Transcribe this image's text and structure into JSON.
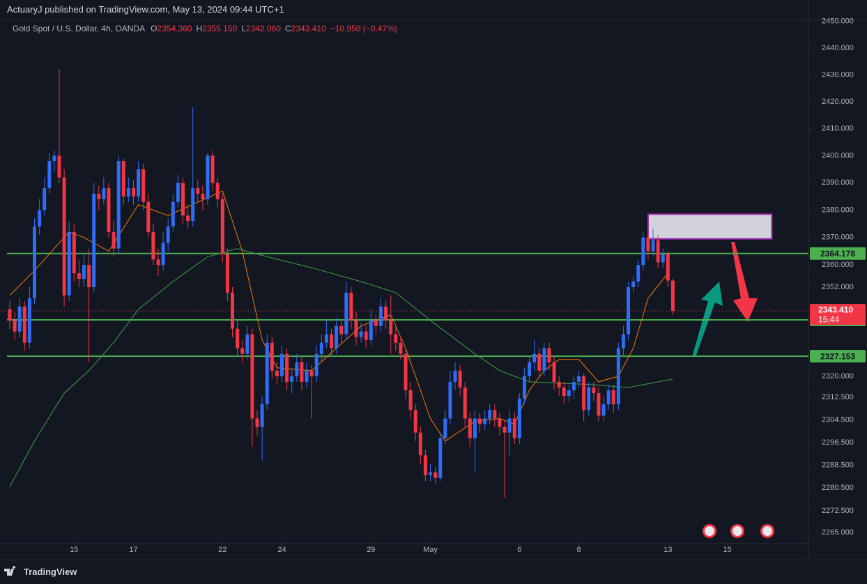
{
  "header": {
    "published": "ActuaryJ published on TradingView.com, May 13, 2024 09:44 UTC+1"
  },
  "legend": {
    "symbol": "Gold Spot / U.S. Dollar, 4h, OANDA",
    "items": [
      {
        "key": "O",
        "value": "2354.360"
      },
      {
        "key": "H",
        "value": "2355.150"
      },
      {
        "key": "L",
        "value": "2342.060"
      },
      {
        "key": "C",
        "value": "2343.410"
      }
    ],
    "change": "−10.950 (−0.47%)"
  },
  "footer": {
    "brand": "TradingView"
  },
  "chart_data": {
    "type": "candlestick",
    "log_scale": true,
    "grid": false,
    "up_color": "#2f6df6",
    "down_color": "#f23645",
    "xlim": [
      -1.97,
      161.4
    ],
    "ylim": [
      2261.1,
      2458.1
    ],
    "xticks": [
      {
        "value": 13,
        "label": "15"
      },
      {
        "value": 25,
        "label": "17"
      },
      {
        "value": 43,
        "label": "22"
      },
      {
        "value": 55,
        "label": "24"
      },
      {
        "value": 73,
        "label": "29"
      },
      {
        "value": 85,
        "label": "May"
      },
      {
        "value": 103,
        "label": "6"
      },
      {
        "value": 115,
        "label": "8"
      },
      {
        "value": 133,
        "label": "13"
      },
      {
        "value": 145,
        "label": "15"
      }
    ],
    "yticks": [
      {
        "value": 2450,
        "label": "2450.000"
      },
      {
        "value": 2440,
        "label": "2440.000"
      },
      {
        "value": 2430,
        "label": "2430.000"
      },
      {
        "value": 2420,
        "label": "2420.000"
      },
      {
        "value": 2410,
        "label": "2410.000"
      },
      {
        "value": 2400,
        "label": "2400.000"
      },
      {
        "value": 2390,
        "label": "2390.000"
      },
      {
        "value": 2380,
        "label": "2380.000"
      },
      {
        "value": 2370,
        "label": "2370.000"
      },
      {
        "value": 2360,
        "label": "2360.000"
      },
      {
        "value": 2352,
        "label": "2352.000"
      },
      {
        "value": 2320,
        "label": "2320.000"
      },
      {
        "value": 2312.5,
        "label": "2312.500"
      },
      {
        "value": 2304.5,
        "label": "2304.500"
      },
      {
        "value": 2296.5,
        "label": "2296.500"
      },
      {
        "value": 2288.5,
        "label": "2288.500"
      },
      {
        "value": 2280.5,
        "label": "2280.500"
      },
      {
        "value": 2272.5,
        "label": "2272.500"
      },
      {
        "value": 2265,
        "label": "2265.000"
      }
    ],
    "open": [
      2344,
      2340,
      2336,
      2345,
      2332,
      2348,
      2374,
      2380,
      2388,
      2398,
      2400,
      2392,
      2349,
      2372,
      2357,
      2355,
      2360,
      2352,
      2386,
      2384,
      2388,
      2372,
      2366,
      2398,
      2385,
      2388,
      2385,
      2395,
      2383,
      2372,
      2362,
      2360,
      2368,
      2374,
      2383,
      2390,
      2378,
      2376,
      2388,
      2386,
      2384,
      2400,
      2390,
      2384,
      2364,
      2350,
      2337,
      2330,
      2328,
      2335,
      2305,
      2302,
      2310,
      2332,
      2322,
      2320,
      2328,
      2318,
      2320,
      2325,
      2318,
      2322,
      2320,
      2328,
      2332,
      2335,
      2330,
      2338,
      2335,
      2350,
      2340,
      2334,
      2336,
      2333,
      2340,
      2338,
      2345,
      2340,
      2335,
      2332,
      2328,
      2315,
      2308,
      2300,
      2292,
      2285,
      2286,
      2284,
      2298,
      2305,
      2318,
      2322,
      2316,
      2305,
      2298,
      2305,
      2303,
      2305,
      2308,
      2305,
      2302,
      2300,
      2305,
      2298,
      2312,
      2320,
      2325,
      2328,
      2322,
      2330,
      2325,
      2318,
      2316,
      2313,
      2315,
      2318,
      2320,
      2308,
      2316,
      2314,
      2306,
      2310,
      2315,
      2310,
      2330,
      2335,
      2352,
      2354,
      2360,
      2370,
      2365,
      2369,
      2361,
      2364,
      2354.36
    ],
    "high": [
      2347,
      2343,
      2348,
      2347,
      2352,
      2377,
      2384,
      2392,
      2401,
      2402,
      2432,
      2395,
      2376,
      2375,
      2362,
      2364,
      2366,
      2390,
      2389,
      2392,
      2390,
      2376,
      2400,
      2399,
      2392,
      2391,
      2398,
      2397,
      2386,
      2375,
      2366,
      2372,
      2377,
      2386,
      2393,
      2392,
      2382,
      2418,
      2391,
      2389,
      2401,
      2402,
      2392,
      2386,
      2366,
      2352,
      2340,
      2333,
      2338,
      2337,
      2308,
      2313,
      2335,
      2334,
      2325,
      2331,
      2330,
      2323,
      2328,
      2327,
      2325,
      2324,
      2331,
      2335,
      2340,
      2337,
      2341,
      2340,
      2354,
      2352,
      2343,
      2339,
      2338,
      2344,
      2342,
      2348,
      2347,
      2349,
      2338,
      2334,
      2330,
      2318,
      2310,
      2302,
      2294,
      2289,
      2288,
      2300,
      2308,
      2322,
      2325,
      2324,
      2318,
      2307,
      2308,
      2307,
      2308,
      2310,
      2310,
      2307,
      2304,
      2308,
      2307,
      2314,
      2323,
      2327,
      2333,
      2330,
      2332,
      2332,
      2327,
      2320,
      2318,
      2317,
      2320,
      2322,
      2321,
      2318,
      2318,
      2316,
      2313,
      2317,
      2317,
      2332,
      2338,
      2354,
      2356,
      2362,
      2372,
      2371,
      2373,
      2371,
      2366,
      2365,
      2355.15
    ],
    "low": [
      2337,
      2333,
      2334,
      2329,
      2330,
      2346,
      2371,
      2378,
      2386,
      2394,
      2390,
      2345,
      2347,
      2354,
      2352,
      2352,
      2325,
      2350,
      2380,
      2382,
      2370,
      2363,
      2364,
      2382,
      2383,
      2382,
      2383,
      2380,
      2370,
      2360,
      2356,
      2358,
      2365,
      2372,
      2381,
      2375,
      2373,
      2374,
      2383,
      2380,
      2382,
      2387,
      2381,
      2361,
      2347,
      2334,
      2327,
      2325,
      2326,
      2295,
      2299,
      2290,
      2308,
      2319,
      2317,
      2318,
      2315,
      2314,
      2318,
      2315,
      2316,
      2305,
      2318,
      2325,
      2330,
      2327,
      2328,
      2332,
      2333,
      2337,
      2331,
      2332,
      2330,
      2331,
      2335,
      2336,
      2337,
      2328,
      2329,
      2326,
      2312,
      2305,
      2297,
      2289,
      2283,
      2283,
      2282,
      2283,
      2296,
      2303,
      2315,
      2313,
      2302,
      2295,
      2286,
      2300,
      2301,
      2303,
      2302,
      2299,
      2277,
      2292,
      2296,
      2296,
      2310,
      2318,
      2322,
      2320,
      2320,
      2322,
      2315,
      2313,
      2310,
      2311,
      2312,
      2316,
      2304,
      2306,
      2311,
      2304,
      2304,
      2308,
      2307,
      2308,
      2327,
      2333,
      2350,
      2352,
      2358,
      2362,
      2363,
      2359,
      2359,
      2352,
      2342.06
    ],
    "close": [
      2340,
      2336,
      2345,
      2332,
      2348,
      2374,
      2380,
      2388,
      2398,
      2400,
      2392,
      2349,
      2372,
      2357,
      2355,
      2360,
      2352,
      2386,
      2384,
      2388,
      2372,
      2366,
      2398,
      2385,
      2388,
      2385,
      2395,
      2383,
      2372,
      2362,
      2360,
      2368,
      2374,
      2383,
      2390,
      2378,
      2376,
      2388,
      2386,
      2384,
      2400,
      2390,
      2384,
      2364,
      2350,
      2337,
      2330,
      2328,
      2335,
      2305,
      2302,
      2310,
      2332,
      2322,
      2320,
      2328,
      2318,
      2320,
      2325,
      2318,
      2322,
      2320,
      2328,
      2332,
      2335,
      2330,
      2338,
      2335,
      2350,
      2340,
      2334,
      2336,
      2333,
      2340,
      2338,
      2345,
      2340,
      2335,
      2332,
      2328,
      2315,
      2308,
      2300,
      2292,
      2285,
      2286,
      2284,
      2298,
      2305,
      2318,
      2322,
      2316,
      2305,
      2298,
      2305,
      2303,
      2305,
      2308,
      2305,
      2302,
      2300,
      2305,
      2298,
      2312,
      2320,
      2325,
      2328,
      2322,
      2330,
      2325,
      2318,
      2316,
      2313,
      2315,
      2318,
      2320,
      2308,
      2316,
      2314,
      2306,
      2310,
      2315,
      2310,
      2330,
      2335,
      2352,
      2354,
      2360,
      2370,
      2365,
      2369,
      2361,
      2364,
      2354.36,
      2343.41
    ],
    "lines": [
      {
        "color": "#f57c00",
        "x": [
          0,
          5,
          12,
          15,
          20,
          26,
          32,
          43,
          47,
          51,
          54,
          61,
          66,
          71,
          77,
          80,
          83,
          85,
          88,
          94,
          99,
          102,
          105,
          108,
          111,
          115,
          119,
          123,
          126,
          129,
          133
        ],
        "values": [
          2349,
          2358,
          2372,
          2370,
          2365,
          2382,
          2378,
          2387,
          2365,
          2333,
          2323,
          2322,
          2330,
          2338,
          2342,
          2330,
          2315,
          2305,
          2297,
          2304,
          2305,
          2303,
          2315,
          2322,
          2326,
          2326,
          2318,
          2320,
          2330,
          2348,
          2357
        ]
      },
      {
        "color": "#43a047",
        "x": [
          0,
          5,
          11,
          16,
          21,
          26,
          33,
          40,
          46,
          52,
          61,
          71,
          78,
          85,
          94,
          99,
          105,
          118,
          125,
          134
        ],
        "values": [
          2281,
          2297,
          2314,
          2322,
          2332,
          2344,
          2354,
          2363,
          2366,
          2363,
          2359,
          2354,
          2350,
          2340,
          2328,
          2322,
          2318,
          2317,
          2316,
          2319
        ]
      }
    ],
    "price_lines": [
      2364.178,
      2340.172,
      2327.153
    ],
    "price_line_color": "#4caf50",
    "last_price": {
      "value": 2343.41,
      "label": "2343.410",
      "countdown": "15:44"
    },
    "zone": {
      "top": 2378.5,
      "bottom": 2369.5,
      "start": 129,
      "end": 154
    }
  }
}
